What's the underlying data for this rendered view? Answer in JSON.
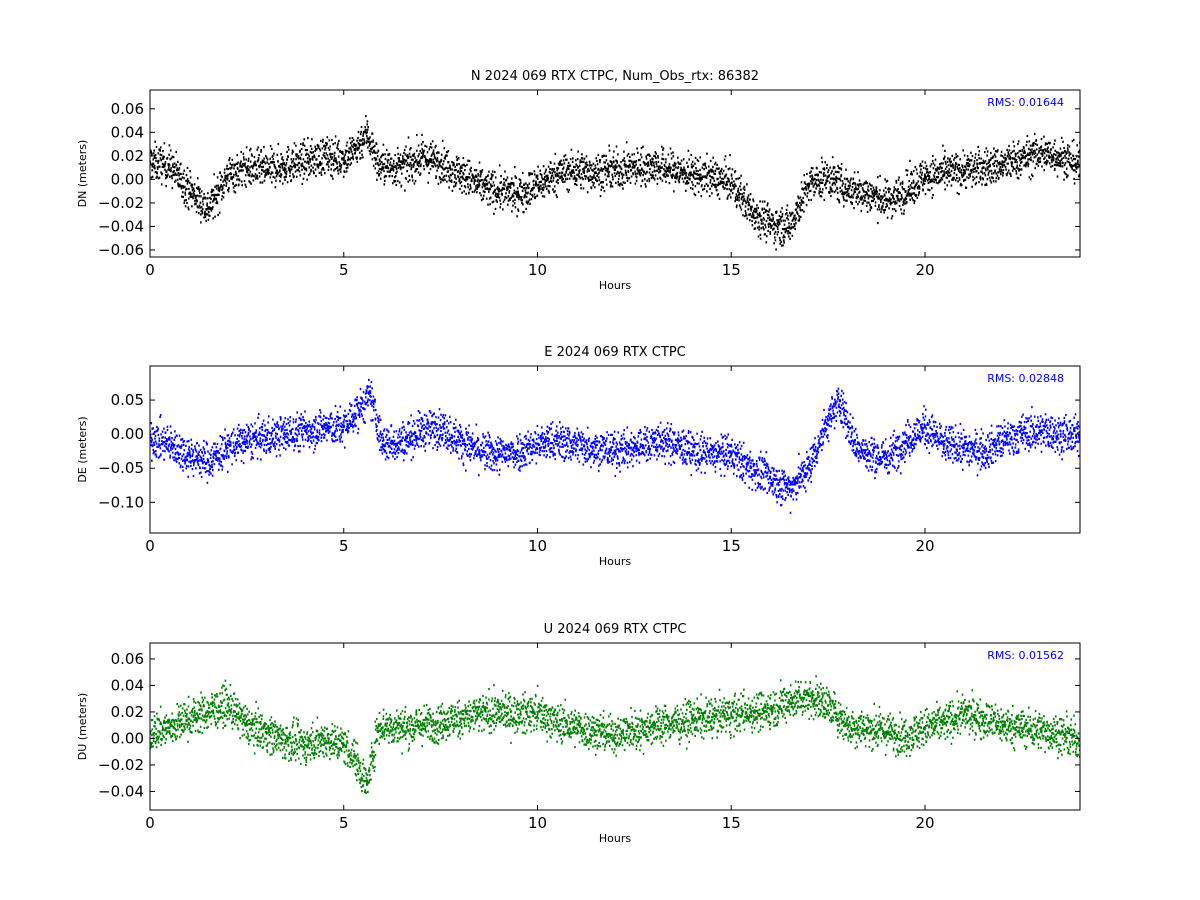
{
  "chart_data": [
    {
      "type": "scatter",
      "title": "N 2024 069 RTX  CTPC, Num_Obs_rtx: 86382",
      "xlabel": "Hours",
      "ylabel": "DN (meters)",
      "xlim": [
        0,
        24
      ],
      "ylim": [
        -0.066,
        0.076
      ],
      "xticks": [
        0,
        5,
        10,
        15,
        20
      ],
      "yticks": [
        -0.06,
        -0.04,
        -0.02,
        0.0,
        0.02,
        0.04,
        0.06
      ],
      "color": "#000000",
      "rms_label": "RMS:  0.01644",
      "rms_color": "#0000ff",
      "grid": false,
      "x": [
        0,
        0.5,
        1,
        1.5,
        2,
        2.5,
        3,
        3.5,
        4,
        4.5,
        5,
        5.3,
        5.6,
        5.9,
        6.5,
        7,
        7.5,
        8,
        8.5,
        9,
        9.5,
        10,
        10.5,
        11,
        11.5,
        12,
        12.5,
        13,
        13.5,
        14,
        14.5,
        15,
        15.5,
        16,
        16.5,
        17,
        17.5,
        18,
        18.5,
        19,
        19.5,
        20,
        20.5,
        21,
        21.5,
        22,
        22.5,
        23,
        23.5,
        24
      ],
      "y": [
        0.015,
        0.012,
        -0.008,
        -0.025,
        0.003,
        0.01,
        0.008,
        0.012,
        0.015,
        0.02,
        0.018,
        0.025,
        0.04,
        0.012,
        0.01,
        0.018,
        0.015,
        0.005,
        -0.005,
        -0.01,
        -0.012,
        -0.005,
        0.005,
        0.008,
        0.006,
        0.008,
        0.01,
        0.012,
        0.008,
        0.004,
        0.002,
        -0.003,
        -0.025,
        -0.038,
        -0.04,
        -0.005,
        0.002,
        -0.008,
        -0.012,
        -0.018,
        -0.01,
        0.003,
        0.005,
        0.008,
        0.01,
        0.012,
        0.018,
        0.022,
        0.02,
        0.012
      ]
    },
    {
      "type": "scatter",
      "title": "E 2024 069 RTX  CTPC",
      "xlabel": "Hours",
      "ylabel": "DE (meters)",
      "xlim": [
        0,
        24
      ],
      "ylim": [
        -0.145,
        0.1
      ],
      "xticks": [
        0,
        5,
        10,
        15,
        20
      ],
      "yticks": [
        -0.1,
        -0.05,
        0.0,
        0.05
      ],
      "color": "#0000ff",
      "rms_label": "RMS:  0.02848",
      "rms_color": "#0000ff",
      "grid": false,
      "x": [
        0,
        0.5,
        1,
        1.5,
        2,
        2.5,
        3,
        3.5,
        4,
        4.5,
        5,
        5.3,
        5.7,
        6,
        6.5,
        7,
        7.5,
        8,
        8.5,
        9,
        9.5,
        10,
        10.5,
        11,
        11.5,
        12,
        12.5,
        13,
        13.5,
        14,
        14.5,
        15,
        15.5,
        16,
        16.5,
        17,
        17.5,
        17.8,
        18.2,
        18.5,
        19,
        19.5,
        20,
        20.5,
        21,
        21.5,
        22,
        22.5,
        23,
        23.5,
        24
      ],
      "y": [
        -0.005,
        -0.015,
        -0.03,
        -0.04,
        -0.02,
        -0.01,
        -0.005,
        0.0,
        0.005,
        0.01,
        0.01,
        0.03,
        0.055,
        -0.015,
        -0.01,
        0.005,
        0.01,
        -0.01,
        -0.025,
        -0.03,
        -0.025,
        -0.015,
        -0.01,
        -0.015,
        -0.02,
        -0.025,
        -0.02,
        -0.01,
        -0.015,
        -0.025,
        -0.03,
        -0.03,
        -0.05,
        -0.065,
        -0.08,
        -0.05,
        0.02,
        0.05,
        -0.015,
        -0.03,
        -0.035,
        -0.01,
        0.01,
        -0.015,
        -0.02,
        -0.025,
        -0.01,
        0.0,
        0.005,
        0.0,
        -0.005
      ]
    },
    {
      "type": "scatter",
      "title": "U 2024 069 RTX  CTPC",
      "xlabel": "Hours",
      "ylabel": "DU (meters)",
      "xlim": [
        0,
        24
      ],
      "ylim": [
        -0.054,
        0.072
      ],
      "xticks": [
        0,
        5,
        10,
        15,
        20
      ],
      "yticks": [
        -0.04,
        -0.02,
        0.0,
        0.02,
        0.04,
        0.06
      ],
      "color": "#008000",
      "rms_label": "RMS:  0.01562",
      "rms_color": "#0000ff",
      "grid": false,
      "x": [
        0,
        0.5,
        1,
        1.5,
        2,
        2.5,
        3,
        3.5,
        4,
        4.5,
        5,
        5.3,
        5.6,
        5.9,
        6.5,
        7,
        7.5,
        8,
        8.5,
        9,
        9.5,
        10,
        10.5,
        11,
        11.5,
        12,
        12.5,
        13,
        13.5,
        14,
        14.5,
        15,
        15.5,
        16,
        16.5,
        17,
        17.5,
        18,
        18.5,
        19,
        19.5,
        20,
        20.5,
        21,
        21.5,
        22,
        22.5,
        23,
        23.5,
        24
      ],
      "y": [
        0.005,
        0.008,
        0.015,
        0.02,
        0.025,
        0.01,
        0.005,
        -0.002,
        -0.005,
        0.0,
        -0.005,
        -0.015,
        -0.035,
        0.01,
        0.008,
        0.01,
        0.012,
        0.015,
        0.018,
        0.02,
        0.018,
        0.02,
        0.012,
        0.008,
        0.005,
        0.003,
        0.006,
        0.01,
        0.012,
        0.014,
        0.016,
        0.018,
        0.02,
        0.022,
        0.028,
        0.032,
        0.025,
        0.01,
        0.008,
        0.005,
        0.002,
        0.008,
        0.012,
        0.018,
        0.015,
        0.01,
        0.008,
        0.006,
        0.003,
        -0.002
      ]
    }
  ]
}
